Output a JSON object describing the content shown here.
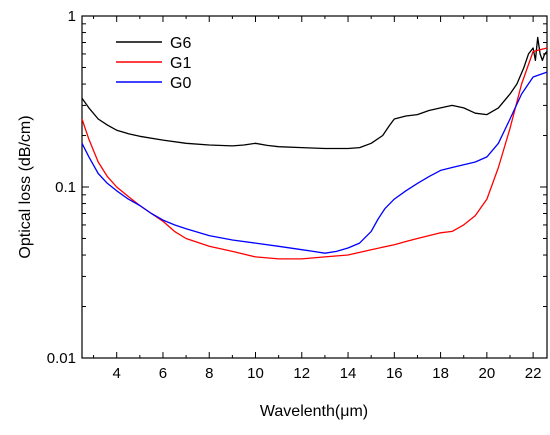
{
  "chart_data": {
    "type": "line",
    "xlabel": "Wavelenth(μm)",
    "ylabel": "Optical loss (dB/cm)",
    "xlim": [
      2.5,
      22.6
    ],
    "ylim": [
      0.01,
      1
    ],
    "yscale": "log",
    "x_ticks": [
      4,
      6,
      8,
      10,
      12,
      14,
      16,
      18,
      20,
      22
    ],
    "y_ticks": [
      0.01,
      0.1,
      1
    ],
    "y_tick_labels": [
      "0.01",
      "0.1",
      "1"
    ],
    "grid": false,
    "legend_position": "top-left",
    "series": [
      {
        "name": "G6",
        "color": "#000000",
        "x": [
          2.5,
          2.8,
          3.2,
          3.6,
          4.0,
          4.5,
          5.0,
          6.0,
          7.0,
          8.0,
          9.0,
          9.5,
          10.0,
          10.5,
          11.0,
          12.0,
          13.0,
          14.0,
          14.5,
          15.0,
          15.5,
          15.8,
          16.0,
          16.5,
          17.0,
          17.5,
          18.0,
          18.5,
          19.0,
          19.5,
          20.0,
          20.5,
          21.0,
          21.3,
          21.6,
          21.8,
          22.0,
          22.1,
          22.2,
          22.3,
          22.4,
          22.5,
          22.6
        ],
        "y": [
          0.33,
          0.29,
          0.25,
          0.23,
          0.215,
          0.205,
          0.198,
          0.188,
          0.18,
          0.176,
          0.174,
          0.176,
          0.18,
          0.175,
          0.172,
          0.17,
          0.168,
          0.168,
          0.17,
          0.18,
          0.2,
          0.23,
          0.25,
          0.26,
          0.265,
          0.28,
          0.29,
          0.3,
          0.29,
          0.27,
          0.265,
          0.29,
          0.35,
          0.4,
          0.5,
          0.6,
          0.65,
          0.55,
          0.75,
          0.6,
          0.55,
          0.6,
          0.62
        ]
      },
      {
        "name": "G1",
        "color": "#ff0000",
        "x": [
          2.5,
          2.8,
          3.2,
          3.6,
          4.0,
          4.5,
          5.0,
          5.5,
          6.0,
          6.5,
          7.0,
          8.0,
          9.0,
          10.0,
          11.0,
          12.0,
          13.0,
          14.0,
          15.0,
          16.0,
          16.5,
          17.0,
          17.5,
          18.0,
          18.5,
          19.0,
          19.5,
          20.0,
          20.5,
          21.0,
          21.5,
          22.0,
          22.6
        ],
        "y": [
          0.25,
          0.19,
          0.14,
          0.115,
          0.1,
          0.088,
          0.078,
          0.07,
          0.063,
          0.055,
          0.05,
          0.045,
          0.042,
          0.039,
          0.038,
          0.038,
          0.039,
          0.04,
          0.043,
          0.046,
          0.048,
          0.05,
          0.052,
          0.054,
          0.055,
          0.06,
          0.068,
          0.085,
          0.13,
          0.22,
          0.4,
          0.62,
          0.65
        ]
      },
      {
        "name": "G0",
        "color": "#0000ff",
        "x": [
          2.5,
          2.8,
          3.2,
          3.6,
          4.0,
          4.5,
          5.0,
          5.5,
          6.0,
          6.5,
          7.0,
          8.0,
          9.0,
          10.0,
          11.0,
          12.0,
          12.5,
          13.0,
          13.5,
          14.0,
          14.5,
          15.0,
          15.3,
          15.6,
          16.0,
          16.5,
          17.0,
          17.5,
          18.0,
          18.5,
          19.0,
          19.5,
          20.0,
          20.5,
          21.0,
          21.5,
          22.0,
          22.6
        ],
        "y": [
          0.18,
          0.15,
          0.12,
          0.105,
          0.095,
          0.085,
          0.078,
          0.07,
          0.064,
          0.06,
          0.057,
          0.052,
          0.049,
          0.047,
          0.045,
          0.043,
          0.042,
          0.041,
          0.042,
          0.044,
          0.047,
          0.055,
          0.065,
          0.075,
          0.085,
          0.095,
          0.105,
          0.115,
          0.125,
          0.13,
          0.135,
          0.14,
          0.15,
          0.18,
          0.25,
          0.35,
          0.44,
          0.47
        ]
      }
    ]
  }
}
